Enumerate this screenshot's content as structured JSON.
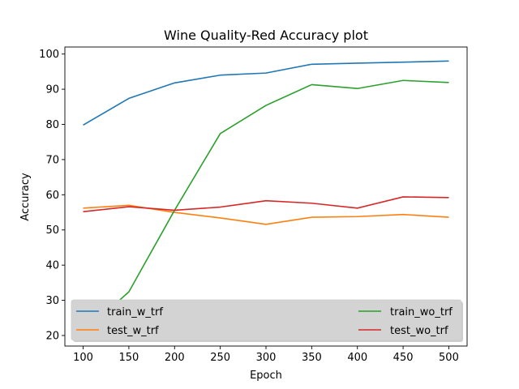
{
  "chart_data": {
    "type": "line",
    "title": "Wine Quality-Red Accuracy plot",
    "xlabel": "Epoch",
    "ylabel": "Accuracy",
    "x": [
      100,
      150,
      200,
      250,
      300,
      350,
      400,
      450,
      500
    ],
    "xticks": [
      100,
      150,
      200,
      250,
      300,
      350,
      400,
      450,
      500
    ],
    "yticks": [
      20,
      30,
      40,
      50,
      60,
      70,
      80,
      90,
      100
    ],
    "xlim": [
      80,
      520
    ],
    "ylim": [
      17,
      102
    ],
    "grid": false,
    "legend": {
      "placement": "lower",
      "columns": 2,
      "background": "#d3d3d3"
    },
    "series": [
      {
        "name": "train_w_trf",
        "color": "#1f77b4",
        "values": [
          79.8,
          87.4,
          91.8,
          94.0,
          94.6,
          97.1,
          97.4,
          97.7,
          98.0
        ]
      },
      {
        "name": "test_w_trf",
        "color": "#ff7f0e",
        "values": [
          56.2,
          57.0,
          55.0,
          53.4,
          51.6,
          53.6,
          53.8,
          54.4,
          53.6
        ]
      },
      {
        "name": "train_wo_trf",
        "color": "#2ca02c",
        "values": [
          20.8,
          32.4,
          55.6,
          77.4,
          85.4,
          91.3,
          90.2,
          92.5,
          91.9
        ]
      },
      {
        "name": "test_wo_trf",
        "color": "#d62728",
        "values": [
          55.2,
          56.6,
          55.6,
          56.5,
          58.3,
          57.6,
          56.2,
          59.4,
          59.2
        ]
      }
    ]
  }
}
